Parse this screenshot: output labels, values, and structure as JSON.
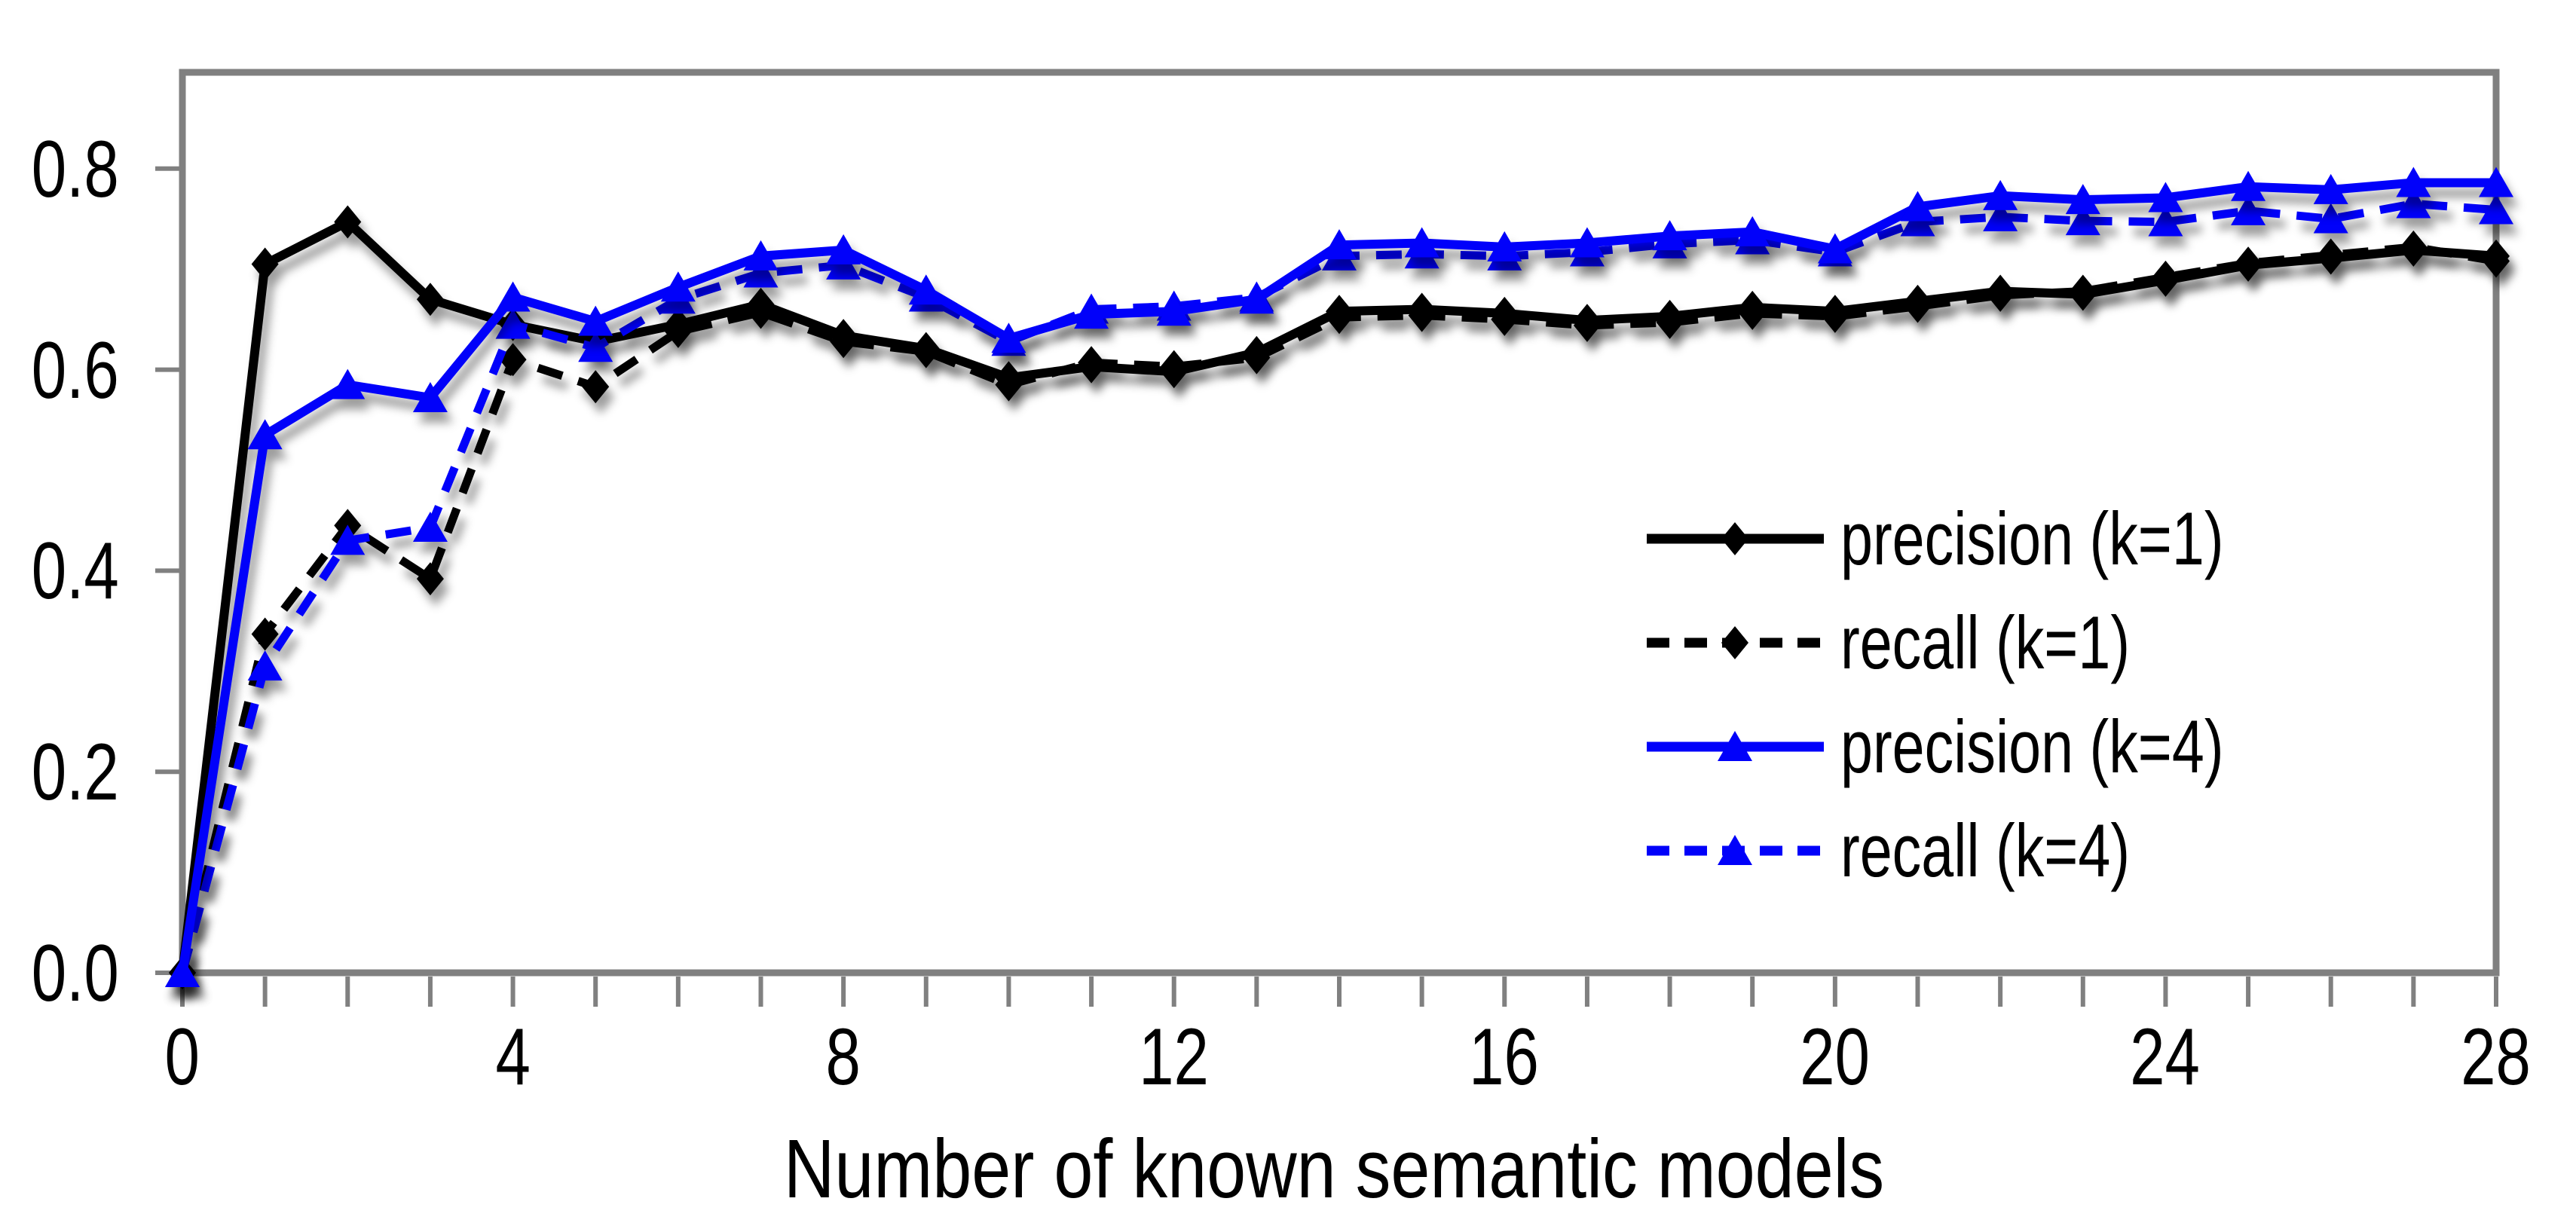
{
  "chart_data": {
    "type": "line",
    "title": "",
    "xlabel": "Number of known semantic models",
    "ylabel": "",
    "x_range": [
      0,
      28
    ],
    "y_range": [
      0.0,
      0.9
    ],
    "grid": false,
    "legend_position": "inside-right",
    "axis_color": "#808080",
    "x_ticks": [
      "0",
      "4",
      "8",
      "12",
      "16",
      "20",
      "24",
      "28"
    ],
    "x_tick_values": [
      0,
      4,
      8,
      12,
      16,
      20,
      24,
      28
    ],
    "y_ticks": [
      "0.0",
      "0.2",
      "0.4",
      "0.6",
      "0.8"
    ],
    "y_tick_values": [
      0,
      0.2,
      0.4,
      0.6,
      0.8
    ],
    "x": [
      0,
      1,
      2,
      3,
      4,
      5,
      6,
      7,
      8,
      9,
      10,
      11,
      12,
      13,
      14,
      15,
      16,
      17,
      18,
      19,
      20,
      21,
      22,
      23,
      24,
      25,
      26,
      27,
      28
    ],
    "series": [
      {
        "id": "precision_k1",
        "legend": "precision (k=1)",
        "color": "#000000",
        "dash": "solid",
        "marker": "diamond",
        "values": [
          0,
          0.705,
          0.747,
          0.67,
          0.645,
          0.628,
          0.645,
          0.665,
          0.634,
          0.621,
          0.592,
          0.603,
          0.598,
          0.617,
          0.658,
          0.66,
          0.656,
          0.649,
          0.653,
          0.662,
          0.658,
          0.668,
          0.678,
          0.675,
          0.689,
          0.704,
          0.711,
          0.719,
          0.713
        ]
      },
      {
        "id": "recall_k1",
        "legend": "recall (k=1)",
        "color": "#000000",
        "dash": "dashed",
        "marker": "diamond",
        "values": [
          0,
          0.337,
          0.445,
          0.392,
          0.61,
          0.583,
          0.638,
          0.657,
          0.628,
          0.618,
          0.585,
          0.607,
          0.603,
          0.612,
          0.652,
          0.654,
          0.65,
          0.644,
          0.647,
          0.656,
          0.653,
          0.663,
          0.674,
          0.678,
          0.692,
          0.706,
          0.714,
          0.722,
          0.708
        ]
      },
      {
        "id": "precision_k4",
        "legend": "precision (k=4)",
        "color": "#0101FA",
        "dash": "solid",
        "marker": "triangle",
        "values": [
          0,
          0.535,
          0.585,
          0.572,
          0.672,
          0.648,
          0.682,
          0.713,
          0.719,
          0.679,
          0.631,
          0.655,
          0.658,
          0.67,
          0.724,
          0.726,
          0.722,
          0.726,
          0.733,
          0.737,
          0.72,
          0.762,
          0.773,
          0.769,
          0.771,
          0.782,
          0.779,
          0.786,
          0.786
        ]
      },
      {
        "id": "recall_k4",
        "legend": "recall (k=4)",
        "color": "#0101FA",
        "dash": "dashed",
        "marker": "triangle",
        "values": [
          0,
          0.305,
          0.43,
          0.443,
          0.645,
          0.622,
          0.67,
          0.696,
          0.704,
          0.672,
          0.628,
          0.66,
          0.663,
          0.672,
          0.713,
          0.715,
          0.713,
          0.717,
          0.725,
          0.729,
          0.717,
          0.747,
          0.752,
          0.748,
          0.747,
          0.758,
          0.75,
          0.765,
          0.759
        ]
      }
    ]
  }
}
